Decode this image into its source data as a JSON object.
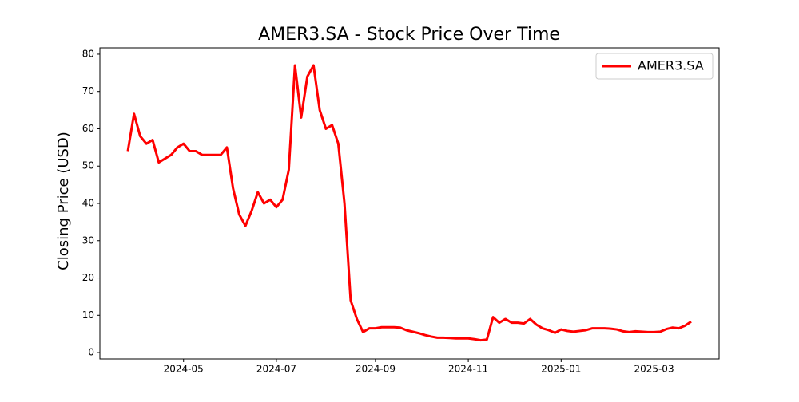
{
  "chart_data": {
    "type": "line",
    "title": "AMER3.SA - Stock Price Over Time",
    "ylabel": "Closing Price (USD)",
    "categories": [
      null,
      null,
      null,
      null,
      null,
      null,
      null,
      null,
      null,
      "2024-05",
      null,
      null,
      null,
      null,
      null,
      null,
      null,
      null,
      null,
      null,
      null,
      null,
      null,
      null,
      "2024-07",
      null,
      null,
      null,
      null,
      null,
      null,
      null,
      null,
      null,
      null,
      null,
      null,
      null,
      null,
      null,
      "2024-09",
      null,
      null,
      null,
      null,
      null,
      null,
      null,
      null,
      null,
      null,
      null,
      null,
      null,
      null,
      "2024-11",
      null,
      null,
      null,
      null,
      null,
      null,
      null,
      null,
      null,
      null,
      null,
      null,
      null,
      null,
      "2025-01",
      null,
      null,
      null,
      null,
      null,
      null,
      null,
      null,
      null,
      null,
      null,
      null,
      null,
      null,
      "2025-03",
      null,
      null,
      null,
      null,
      null,
      null
    ],
    "series": [
      {
        "name": "AMER3.SA",
        "color": "#ff0000",
        "values": [
          54,
          64,
          58,
          56,
          57,
          51,
          52,
          53,
          55,
          56,
          54,
          54,
          53,
          53,
          53,
          53,
          55,
          44,
          37,
          34,
          38,
          43,
          40,
          41,
          39,
          41,
          49,
          77,
          63,
          74,
          77,
          65,
          60,
          61,
          56,
          40,
          14,
          9,
          5.5,
          6.5,
          6.5,
          6.8,
          6.8,
          6.8,
          6.7,
          6.0,
          5.6,
          5.2,
          4.7,
          4.3,
          4.0,
          4.0,
          3.9,
          3.8,
          3.8,
          3.8,
          3.6,
          3.3,
          3.5,
          9.5,
          8,
          9,
          8,
          8,
          7.8,
          9,
          7.5,
          6.5,
          6,
          5.3,
          6.2,
          5.8,
          5.6,
          5.8,
          6,
          6.5,
          6.5,
          6.5,
          6.4,
          6.2,
          5.7,
          5.5,
          5.7,
          5.6,
          5.5,
          5.5,
          5.6,
          6.3,
          6.7,
          6.5,
          7.2,
          8.3
        ]
      }
    ],
    "ylim": [
      -1.7,
      81.7
    ],
    "yticks": [
      0,
      10,
      20,
      30,
      40,
      50,
      60,
      70,
      80
    ],
    "legend": "upper right"
  }
}
